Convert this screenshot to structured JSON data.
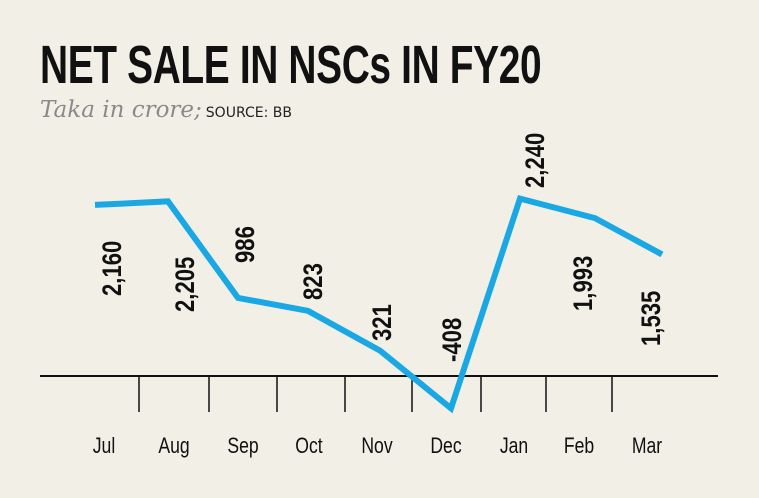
{
  "chart_data": {
    "type": "line",
    "title": "NET SALE IN NSCs IN FY20",
    "subtitle": "Taka in crore;",
    "source": "SOURCE: BB",
    "categories": [
      "Jul",
      "Aug",
      "Sep",
      "Oct",
      "Nov",
      "Dec",
      "Jan",
      "Feb",
      "Mar"
    ],
    "values": [
      2160,
      2205,
      986,
      823,
      321,
      -408,
      2240,
      1993,
      1535
    ],
    "value_labels": [
      "2,160",
      "2,205",
      "986",
      "823",
      "321",
      "-408",
      "2,240",
      "1,993",
      "1,535"
    ],
    "xlabel": "",
    "ylabel": "",
    "line_color": "#1aa8e4",
    "grid": false
  }
}
